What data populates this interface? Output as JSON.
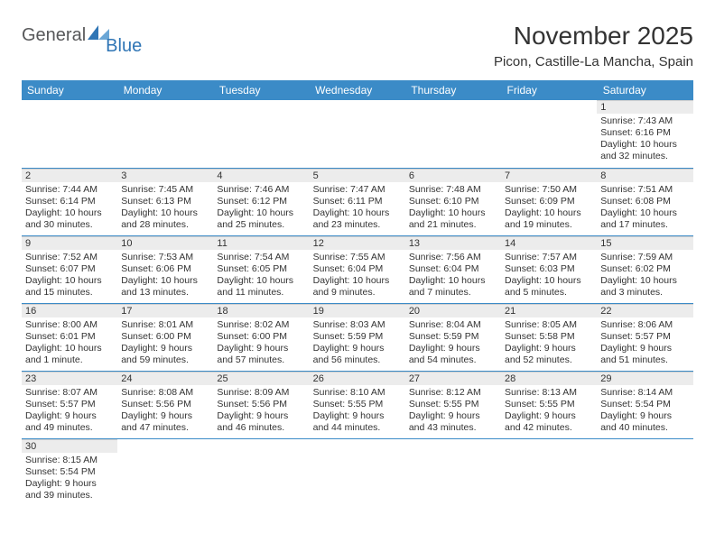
{
  "logo": {
    "general": "General",
    "blue": "Blue"
  },
  "title": "November 2025",
  "location": "Picon, Castille-La Mancha, Spain",
  "colors": {
    "header_bg": "#3b8bc7",
    "header_text": "#ffffff",
    "daynum_bg": "#ececec",
    "rule": "#3b8bc7",
    "logo_general": "#57585a",
    "logo_blue": "#2f75b5",
    "background": "#ffffff"
  },
  "columns": [
    "Sunday",
    "Monday",
    "Tuesday",
    "Wednesday",
    "Thursday",
    "Friday",
    "Saturday"
  ],
  "weeks": [
    [
      null,
      null,
      null,
      null,
      null,
      null,
      {
        "d": "1",
        "sr": "7:43 AM",
        "ss": "6:16 PM",
        "dl": "Daylight: 10 hours and 32 minutes."
      }
    ],
    [
      {
        "d": "2",
        "sr": "7:44 AM",
        "ss": "6:14 PM",
        "dl": "Daylight: 10 hours and 30 minutes."
      },
      {
        "d": "3",
        "sr": "7:45 AM",
        "ss": "6:13 PM",
        "dl": "Daylight: 10 hours and 28 minutes."
      },
      {
        "d": "4",
        "sr": "7:46 AM",
        "ss": "6:12 PM",
        "dl": "Daylight: 10 hours and 25 minutes."
      },
      {
        "d": "5",
        "sr": "7:47 AM",
        "ss": "6:11 PM",
        "dl": "Daylight: 10 hours and 23 minutes."
      },
      {
        "d": "6",
        "sr": "7:48 AM",
        "ss": "6:10 PM",
        "dl": "Daylight: 10 hours and 21 minutes."
      },
      {
        "d": "7",
        "sr": "7:50 AM",
        "ss": "6:09 PM",
        "dl": "Daylight: 10 hours and 19 minutes."
      },
      {
        "d": "8",
        "sr": "7:51 AM",
        "ss": "6:08 PM",
        "dl": "Daylight: 10 hours and 17 minutes."
      }
    ],
    [
      {
        "d": "9",
        "sr": "7:52 AM",
        "ss": "6:07 PM",
        "dl": "Daylight: 10 hours and 15 minutes."
      },
      {
        "d": "10",
        "sr": "7:53 AM",
        "ss": "6:06 PM",
        "dl": "Daylight: 10 hours and 13 minutes."
      },
      {
        "d": "11",
        "sr": "7:54 AM",
        "ss": "6:05 PM",
        "dl": "Daylight: 10 hours and 11 minutes."
      },
      {
        "d": "12",
        "sr": "7:55 AM",
        "ss": "6:04 PM",
        "dl": "Daylight: 10 hours and 9 minutes."
      },
      {
        "d": "13",
        "sr": "7:56 AM",
        "ss": "6:04 PM",
        "dl": "Daylight: 10 hours and 7 minutes."
      },
      {
        "d": "14",
        "sr": "7:57 AM",
        "ss": "6:03 PM",
        "dl": "Daylight: 10 hours and 5 minutes."
      },
      {
        "d": "15",
        "sr": "7:59 AM",
        "ss": "6:02 PM",
        "dl": "Daylight: 10 hours and 3 minutes."
      }
    ],
    [
      {
        "d": "16",
        "sr": "8:00 AM",
        "ss": "6:01 PM",
        "dl": "Daylight: 10 hours and 1 minute."
      },
      {
        "d": "17",
        "sr": "8:01 AM",
        "ss": "6:00 PM",
        "dl": "Daylight: 9 hours and 59 minutes."
      },
      {
        "d": "18",
        "sr": "8:02 AM",
        "ss": "6:00 PM",
        "dl": "Daylight: 9 hours and 57 minutes."
      },
      {
        "d": "19",
        "sr": "8:03 AM",
        "ss": "5:59 PM",
        "dl": "Daylight: 9 hours and 56 minutes."
      },
      {
        "d": "20",
        "sr": "8:04 AM",
        "ss": "5:59 PM",
        "dl": "Daylight: 9 hours and 54 minutes."
      },
      {
        "d": "21",
        "sr": "8:05 AM",
        "ss": "5:58 PM",
        "dl": "Daylight: 9 hours and 52 minutes."
      },
      {
        "d": "22",
        "sr": "8:06 AM",
        "ss": "5:57 PM",
        "dl": "Daylight: 9 hours and 51 minutes."
      }
    ],
    [
      {
        "d": "23",
        "sr": "8:07 AM",
        "ss": "5:57 PM",
        "dl": "Daylight: 9 hours and 49 minutes."
      },
      {
        "d": "24",
        "sr": "8:08 AM",
        "ss": "5:56 PM",
        "dl": "Daylight: 9 hours and 47 minutes."
      },
      {
        "d": "25",
        "sr": "8:09 AM",
        "ss": "5:56 PM",
        "dl": "Daylight: 9 hours and 46 minutes."
      },
      {
        "d": "26",
        "sr": "8:10 AM",
        "ss": "5:55 PM",
        "dl": "Daylight: 9 hours and 44 minutes."
      },
      {
        "d": "27",
        "sr": "8:12 AM",
        "ss": "5:55 PM",
        "dl": "Daylight: 9 hours and 43 minutes."
      },
      {
        "d": "28",
        "sr": "8:13 AM",
        "ss": "5:55 PM",
        "dl": "Daylight: 9 hours and 42 minutes."
      },
      {
        "d": "29",
        "sr": "8:14 AM",
        "ss": "5:54 PM",
        "dl": "Daylight: 9 hours and 40 minutes."
      }
    ],
    [
      {
        "d": "30",
        "sr": "8:15 AM",
        "ss": "5:54 PM",
        "dl": "Daylight: 9 hours and 39 minutes."
      },
      null,
      null,
      null,
      null,
      null,
      null
    ]
  ],
  "labels": {
    "sunrise": "Sunrise: ",
    "sunset": "Sunset: "
  }
}
